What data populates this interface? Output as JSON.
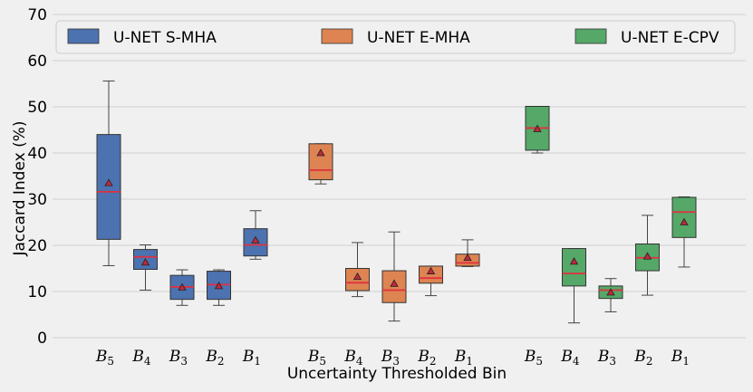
{
  "chart_data": {
    "type": "box",
    "title": "",
    "xlabel": "Uncertainty Thresholded Bin",
    "ylabel": "Jaccard Index (%)",
    "ylim": [
      0,
      70
    ],
    "yticks": [
      0,
      10,
      20,
      30,
      40,
      50,
      60,
      70
    ],
    "grid": true,
    "legend_position": "top",
    "median_color": "#e0303f",
    "mean_marker_color": "#c0283a",
    "categories": [
      "B5",
      "B4",
      "B3",
      "B2",
      "B1"
    ],
    "category_labels": [
      {
        "base": "B",
        "sub": "5"
      },
      {
        "base": "B",
        "sub": "4"
      },
      {
        "base": "B",
        "sub": "3"
      },
      {
        "base": "B",
        "sub": "2"
      },
      {
        "base": "B",
        "sub": "1"
      }
    ],
    "series": [
      {
        "name": "U-NET S-MHA",
        "color": "#4c72b0",
        "boxes": [
          {
            "category": "B5",
            "whisker_low": 15.6,
            "q1": 21.3,
            "median": 31.6,
            "q3": 44.0,
            "whisker_high": 55.6,
            "mean": 33.5
          },
          {
            "category": "B4",
            "whisker_low": 10.3,
            "q1": 14.8,
            "median": 17.5,
            "q3": 19.1,
            "whisker_high": 20.1,
            "mean": 16.3
          },
          {
            "category": "B3",
            "whisker_low": 7.0,
            "q1": 8.3,
            "median": 11.0,
            "q3": 13.5,
            "whisker_high": 14.7,
            "mean": 10.9
          },
          {
            "category": "B2",
            "whisker_low": 7.0,
            "q1": 8.3,
            "median": 11.5,
            "q3": 14.4,
            "whisker_high": 14.7,
            "mean": 11.2
          },
          {
            "category": "B1",
            "whisker_low": 17.0,
            "q1": 17.7,
            "median": 20.1,
            "q3": 23.6,
            "whisker_high": 27.5,
            "mean": 21.1
          }
        ]
      },
      {
        "name": "U-NET E-MHA",
        "color": "#dd8452",
        "boxes": [
          {
            "category": "B5",
            "whisker_low": 33.3,
            "q1": 34.2,
            "median": 36.3,
            "q3": 42.0,
            "whisker_high": 42.0,
            "mean": 40.0
          },
          {
            "category": "B4",
            "whisker_low": 8.9,
            "q1": 10.2,
            "median": 11.9,
            "q3": 15.0,
            "whisker_high": 20.6,
            "mean": 13.2
          },
          {
            "category": "B3",
            "whisker_low": 3.6,
            "q1": 7.6,
            "median": 10.3,
            "q3": 14.5,
            "whisker_high": 22.9,
            "mean": 11.7
          },
          {
            "category": "B2",
            "whisker_low": 9.1,
            "q1": 11.8,
            "median": 12.9,
            "q3": 15.5,
            "whisker_high": 15.5,
            "mean": 14.4
          },
          {
            "category": "B1",
            "whisker_low": 15.4,
            "q1": 15.5,
            "median": 16.2,
            "q3": 18.1,
            "whisker_high": 21.2,
            "mean": 17.3
          }
        ]
      },
      {
        "name": "U-NET E-CPV",
        "color": "#55a868",
        "boxes": [
          {
            "category": "B5",
            "whisker_low": 40.0,
            "q1": 40.6,
            "median": 45.4,
            "q3": 50.1,
            "whisker_high": 50.1,
            "mean": 45.2
          },
          {
            "category": "B4",
            "whisker_low": 3.2,
            "q1": 11.2,
            "median": 13.9,
            "q3": 19.3,
            "whisker_high": 19.3,
            "mean": 16.5
          },
          {
            "category": "B3",
            "whisker_low": 5.6,
            "q1": 8.5,
            "median": 10.3,
            "q3": 11.2,
            "whisker_high": 12.8,
            "mean": 9.8
          },
          {
            "category": "B2",
            "whisker_low": 9.2,
            "q1": 14.5,
            "median": 17.3,
            "q3": 20.3,
            "whisker_high": 26.5,
            "mean": 17.6
          },
          {
            "category": "B1",
            "whisker_low": 15.3,
            "q1": 21.7,
            "median": 27.2,
            "q3": 30.4,
            "whisker_high": 30.5,
            "mean": 25.0
          }
        ]
      }
    ]
  }
}
